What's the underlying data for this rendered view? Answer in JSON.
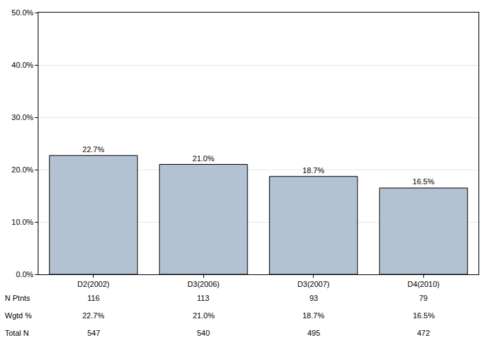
{
  "chart_data": {
    "type": "bar",
    "categories": [
      "D2(2002)",
      "D3(2006)",
      "D3(2007)",
      "D4(2010)"
    ],
    "values": [
      22.7,
      21.0,
      18.7,
      16.5
    ],
    "value_labels": [
      "22.7%",
      "21.0%",
      "18.7%",
      "16.5%"
    ],
    "data_labels": true,
    "color": "#b3c2d2",
    "ylim": [
      0,
      50
    ],
    "yticks": [
      {
        "value": 0,
        "label": "0.0%"
      },
      {
        "value": 10,
        "label": "10.0%"
      },
      {
        "value": 20,
        "label": "20.0%"
      },
      {
        "value": 30,
        "label": "30.0%"
      },
      {
        "value": 40,
        "label": "40.0%"
      },
      {
        "value": 50,
        "label": "50.0%"
      }
    ],
    "grid": true
  },
  "table": {
    "rows": [
      {
        "label": "N Ptnts",
        "values": [
          116,
          113,
          93,
          79
        ]
      },
      {
        "label": "Wgtd %",
        "values": [
          "22.7%",
          "21.0%",
          "18.7%",
          "16.5%"
        ]
      },
      {
        "label": "Total N",
        "values": [
          547,
          540,
          495,
          472
        ]
      }
    ]
  }
}
